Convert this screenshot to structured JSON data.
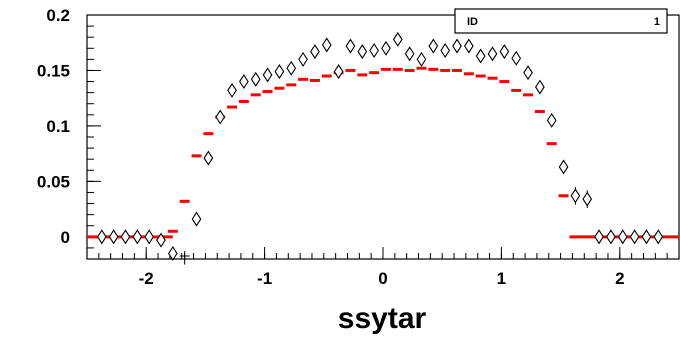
{
  "chart_data": {
    "type": "scatter",
    "xlabel": "ssytar",
    "ylabel": "",
    "xlim": [
      -2.5,
      2.5
    ],
    "ylim": [
      -0.02,
      0.2
    ],
    "x_ticks": [
      {
        "value": -2,
        "label": "-2"
      },
      {
        "value": -1,
        "label": "-1"
      },
      {
        "value": 0,
        "label": "0"
      },
      {
        "value": 1,
        "label": "1"
      },
      {
        "value": 2,
        "label": "2"
      }
    ],
    "y_ticks": [
      {
        "value": 0,
        "label": "0"
      },
      {
        "value": 0.05,
        "label": "0.05"
      },
      {
        "value": 0.1,
        "label": "0.1"
      },
      {
        "value": 0.15,
        "label": "0.15"
      },
      {
        "value": 0.2,
        "label": "0.2"
      }
    ],
    "stats_box": {
      "label": "ID",
      "value": "1"
    },
    "series": [
      {
        "marker": "open-diamond",
        "color": "#000000",
        "x": [
          -2.375,
          -2.275,
          -2.175,
          -2.075,
          -1.975,
          -1.875,
          -1.775,
          -1.675,
          -1.575,
          -1.475,
          -1.375,
          -1.275,
          -1.175,
          -1.075,
          -0.975,
          -0.875,
          -0.775,
          -0.675,
          -0.575,
          -0.475,
          -0.375,
          -0.275,
          -0.175,
          -0.075,
          0.025,
          0.125,
          0.225,
          0.325,
          0.425,
          0.525,
          0.625,
          0.725,
          0.825,
          0.925,
          1.025,
          1.125,
          1.225,
          1.325,
          1.425,
          1.525,
          1.625,
          1.725,
          1.825,
          1.925,
          2.025,
          2.125,
          2.225,
          2.325
        ],
        "y": [
          0,
          0,
          0,
          0,
          0,
          -0.003,
          -0.015,
          -0.02,
          0.016,
          0.071,
          0.108,
          0.132,
          0.14,
          0.142,
          0.146,
          0.149,
          0.152,
          0.16,
          0.167,
          0.173,
          0.149,
          0.172,
          0.167,
          0.168,
          0.17,
          0.178,
          0.165,
          0.16,
          0.172,
          0.168,
          0.172,
          0.172,
          0.163,
          0.165,
          0.167,
          0.161,
          0.148,
          0.135,
          0.105,
          0.063,
          0.037,
          0.034,
          0,
          0,
          0,
          0,
          0,
          0
        ],
        "err": [
          0,
          0,
          0,
          0,
          0,
          0.002,
          0.004,
          0.005,
          0.004,
          0.004,
          0.004,
          0.004,
          0.004,
          0.004,
          0.004,
          0.004,
          0.004,
          0.004,
          0.004,
          0.004,
          0.004,
          0.004,
          0.004,
          0.004,
          0.004,
          0.004,
          0.004,
          0.004,
          0.004,
          0.004,
          0.004,
          0.004,
          0.004,
          0.004,
          0.004,
          0.004,
          0.004,
          0.004,
          0.005,
          0.005,
          0.008,
          0.008,
          0,
          0,
          0,
          0,
          0,
          0
        ]
      },
      {
        "marker": "red-dash",
        "color": "#ff0000",
        "x": [
          -1.775,
          -1.675,
          -1.575,
          -1.475,
          -1.375,
          -1.275,
          -1.175,
          -1.075,
          -0.975,
          -0.875,
          -0.775,
          -0.675,
          -0.575,
          -0.475,
          -0.375,
          -0.275,
          -0.175,
          -0.075,
          0.025,
          0.125,
          0.225,
          0.325,
          0.425,
          0.525,
          0.625,
          0.725,
          0.825,
          0.925,
          1.025,
          1.125,
          1.225,
          1.325,
          1.425,
          1.525
        ],
        "y": [
          0.005,
          0.032,
          0.073,
          0.093,
          0.108,
          0.117,
          0.122,
          0.128,
          0.131,
          0.134,
          0.137,
          0.142,
          0.141,
          0.145,
          0.148,
          0.15,
          0.146,
          0.148,
          0.151,
          0.151,
          0.15,
          0.152,
          0.151,
          0.15,
          0.15,
          0.147,
          0.145,
          0.143,
          0.14,
          0.132,
          0.128,
          0.113,
          0.084,
          0.037
        ],
        "flat_y": 0,
        "flat_x_ranges": [
          [
            -2.5,
            -1.775
          ],
          [
            1.575,
            2.5
          ]
        ]
      }
    ]
  }
}
